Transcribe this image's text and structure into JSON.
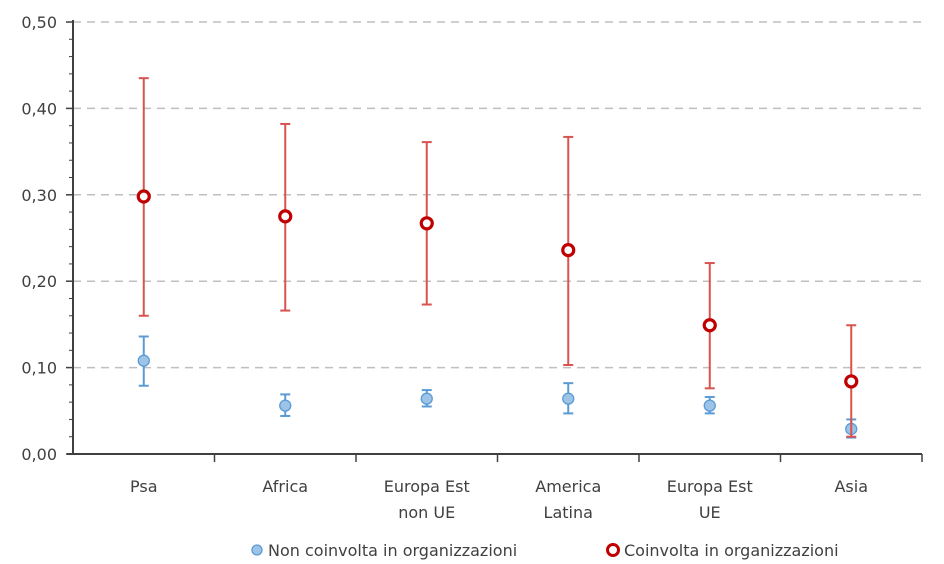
{
  "chart_data": {
    "type": "scatter",
    "title": "",
    "xlabel": "",
    "ylabel": "",
    "ylim": [
      0,
      0.5
    ],
    "yticks": [
      0,
      0.1,
      0.2,
      0.3,
      0.4,
      0.5
    ],
    "ytick_labels": [
      "0,00",
      "0,10",
      "0,20",
      "0,30",
      "0,40",
      "0,50"
    ],
    "grid": "horizontal dashed",
    "legend_position": "bottom",
    "categories": [
      [
        "Psa"
      ],
      [
        "Africa"
      ],
      [
        "Europa Est",
        "non UE"
      ],
      [
        "America",
        "Latina"
      ],
      [
        "Europa Est",
        "UE"
      ],
      [
        "Asia"
      ]
    ],
    "series": [
      {
        "name": "Non coinvolta in organizzazioni",
        "color": "#9dc3e6",
        "stroke": "#5b9bd5",
        "marker": "filled-circle",
        "values": [
          0.108,
          0.056,
          0.064,
          0.064,
          0.056,
          0.029
        ],
        "lower": [
          0.079,
          0.044,
          0.055,
          0.047,
          0.047,
          0.019
        ],
        "upper": [
          0.136,
          0.069,
          0.074,
          0.082,
          0.066,
          0.04
        ]
      },
      {
        "name": "Coinvolta in organizzazioni",
        "color": "#ffffff",
        "stroke": "#c00000",
        "errcolor": "#d9534f",
        "marker": "hollow-circle",
        "values": [
          0.298,
          0.275,
          0.267,
          0.236,
          0.149,
          0.084
        ],
        "lower": [
          0.16,
          0.166,
          0.173,
          0.103,
          0.076,
          0.02
        ],
        "upper": [
          0.435,
          0.382,
          0.361,
          0.367,
          0.221,
          0.149
        ]
      }
    ]
  }
}
